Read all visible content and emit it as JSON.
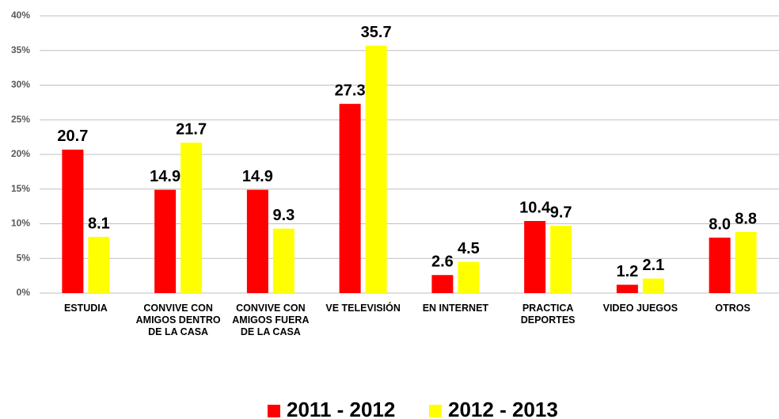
{
  "chart_data": {
    "type": "bar",
    "categories": [
      "ESTUDIA",
      "CONVIVE CON AMIGOS DENTRO DE LA CASA",
      "CONVIVE CON AMIGOS FUERA DE LA CASA",
      "VE TELEVISIÓN",
      "EN INTERNET",
      "PRACTICA DEPORTES",
      "VIDEO JUEGOS",
      "OTROS"
    ],
    "series": [
      {
        "name": "2011 - 2012",
        "color": "#ff0000",
        "values": [
          20.7,
          14.9,
          14.9,
          27.3,
          2.6,
          10.4,
          1.2,
          8.0
        ],
        "value_labels": [
          "20.7",
          "14.9",
          "14.9",
          "27.3",
          "2.6",
          "10.4",
          "1.2",
          "8.0"
        ]
      },
      {
        "name": "2012 - 2013",
        "color": "#ffff00",
        "values": [
          8.1,
          21.7,
          9.3,
          35.7,
          4.5,
          9.7,
          2.1,
          8.8
        ],
        "value_labels": [
          "8.1",
          "21.7",
          "9.3",
          "35.7",
          "4.5",
          "9.7",
          "2.1",
          "8.8"
        ]
      }
    ],
    "ylim": [
      0,
      40
    ],
    "yticks": [
      {
        "value": 0,
        "label": "0%"
      },
      {
        "value": 5,
        "label": "5%"
      },
      {
        "value": 10,
        "label": "10%"
      },
      {
        "value": 15,
        "label": "15%"
      },
      {
        "value": 20,
        "label": "20%"
      },
      {
        "value": 25,
        "label": "25%"
      },
      {
        "value": 30,
        "label": "30%"
      },
      {
        "value": 35,
        "label": "35%"
      },
      {
        "value": 40,
        "label": "40%"
      }
    ],
    "grid": true,
    "legend": "bottom"
  }
}
